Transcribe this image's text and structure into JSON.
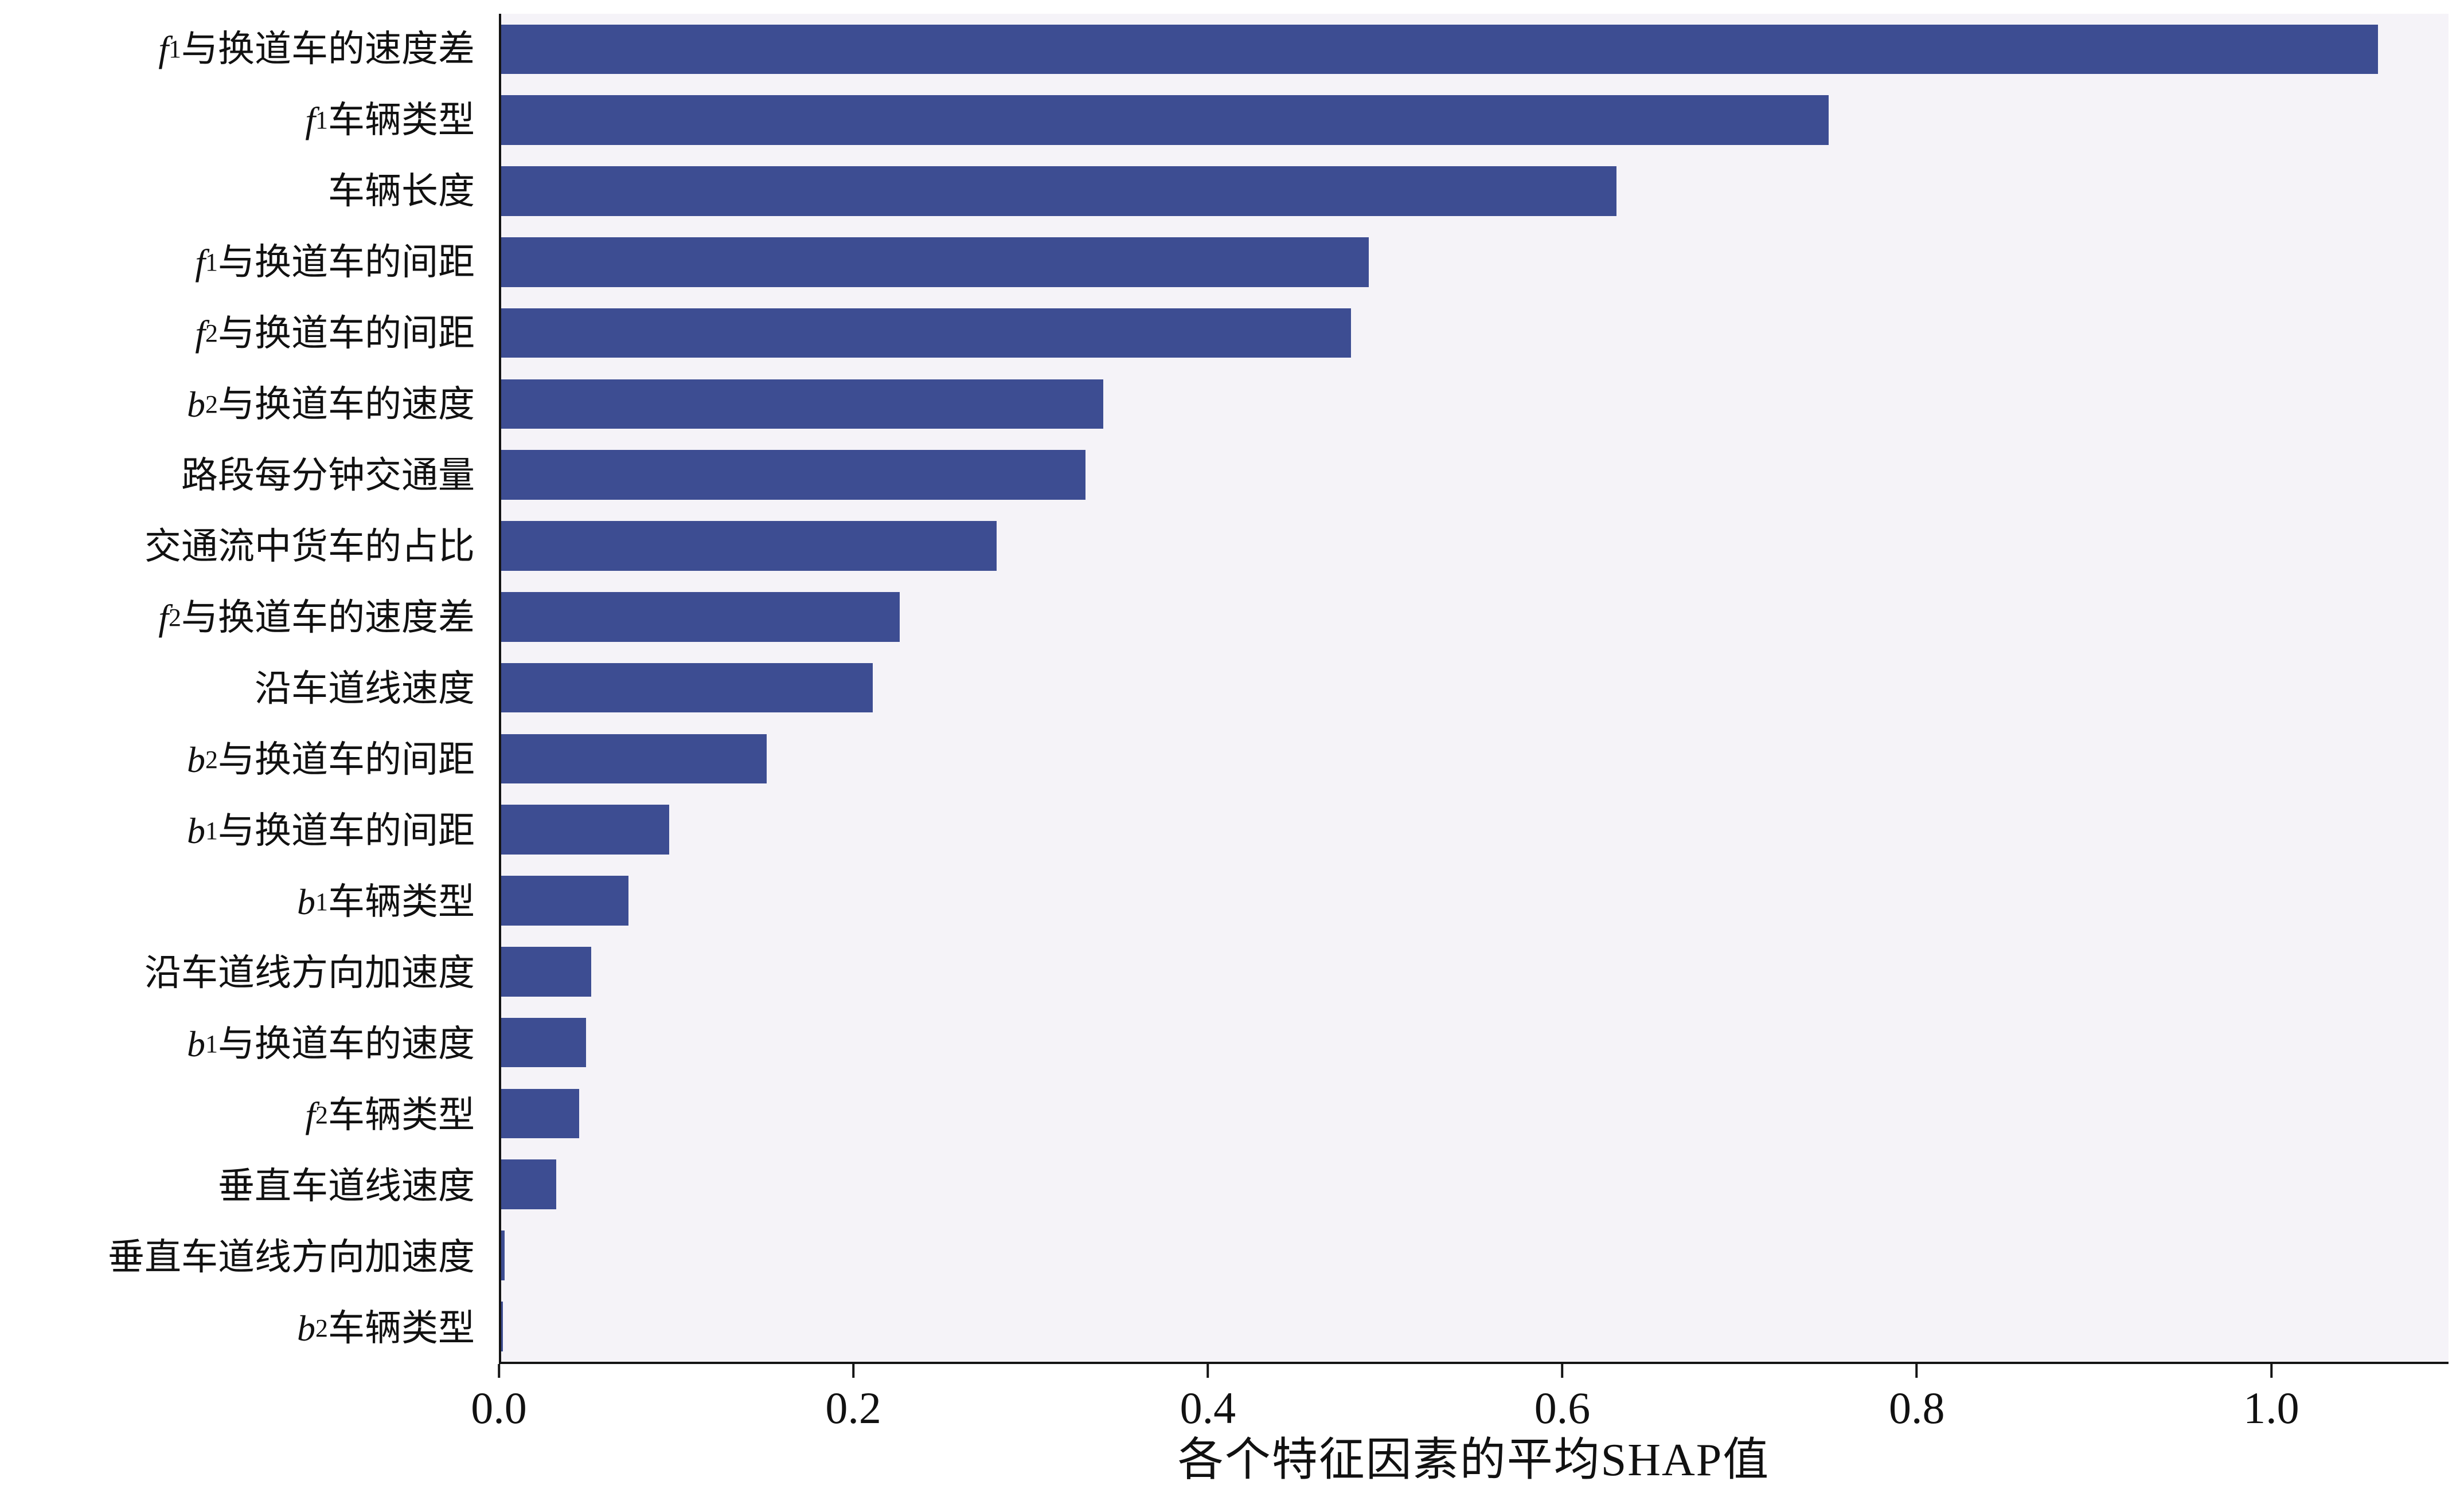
{
  "chart_data": {
    "type": "bar",
    "orientation": "horizontal",
    "title": "",
    "xlabel": "各个特征因素的平均SHAP值",
    "ylabel": "",
    "categories": [
      "f₁与换道车的速度差",
      "f₁车辆类型",
      "车辆长度",
      "f₁与换道车的间距",
      "f₂与换道车的间距",
      "b₂与换道车的速度",
      "路段每分钟交通量",
      "交通流中货车的占比",
      "f₂与换道车的速度差",
      "沿车道线速度",
      "b₂与换道车的间距",
      "b₁与换道车的间距",
      "b₁车辆类型",
      "沿车道线方向加速度",
      "b₁与换道车的速度",
      "f₂车辆类型",
      "垂直车道线速度",
      "垂直车道线方向加速度",
      "b₂车辆类型"
    ],
    "values": [
      1.06,
      0.75,
      0.63,
      0.49,
      0.48,
      0.34,
      0.33,
      0.28,
      0.225,
      0.21,
      0.15,
      0.095,
      0.072,
      0.051,
      0.048,
      0.044,
      0.031,
      0.002,
      0.001
    ],
    "xticks": [
      0.0,
      0.2,
      0.4,
      0.6,
      0.8,
      1.0
    ],
    "xlim": [
      0,
      1.1
    ],
    "bar_color": "#3d4d92",
    "plot_background": "#f5f3f8",
    "grid": false,
    "legend_position": "none"
  }
}
